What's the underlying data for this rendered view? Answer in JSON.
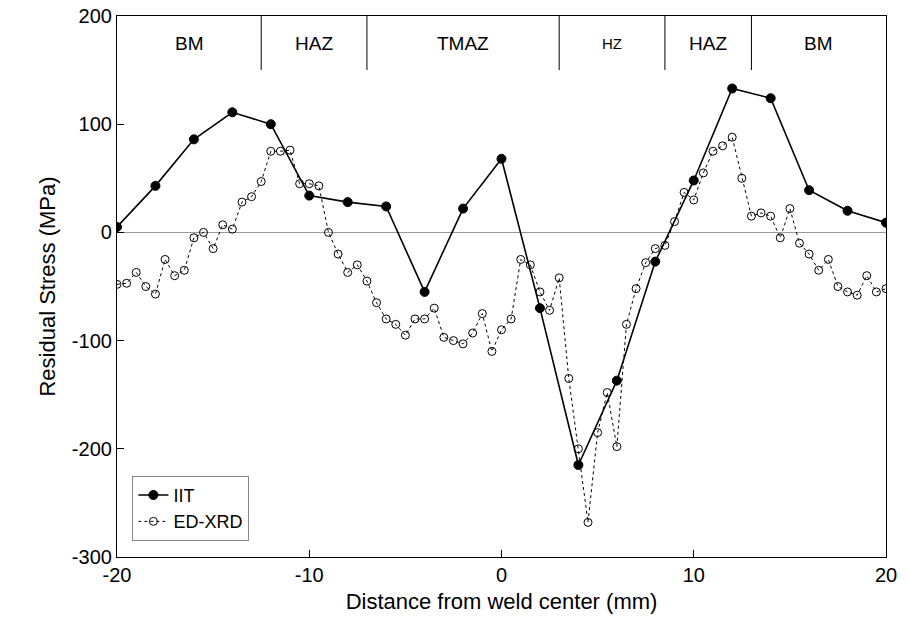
{
  "chart_data": {
    "type": "line",
    "x_label": "Distance from weld center (mm)",
    "y_label": "Residual Stress (MPa)",
    "xlim": [
      -20,
      20
    ],
    "xticks": [
      -20,
      -10,
      0,
      10,
      20
    ],
    "ylim": [
      -300,
      200
    ],
    "yticks": [
      -300,
      -200,
      -100,
      0,
      100,
      200
    ],
    "grid": false,
    "legend": "lower left",
    "zones": [
      {
        "label": "BM",
        "from": -20,
        "to": -12.5
      },
      {
        "label": "HAZ",
        "from": -12.5,
        "to": -7
      },
      {
        "label": "TMAZ",
        "from": -7,
        "to": 3
      },
      {
        "label": "HZ",
        "from": 3,
        "to": 8.5
      },
      {
        "label": "HAZ",
        "from": 8.5,
        "to": 13
      },
      {
        "label": "BM",
        "from": 13,
        "to": 20
      }
    ],
    "series": [
      {
        "name": "IIT",
        "color": "#000000",
        "marker": "circle",
        "line_style": "solid",
        "x": [
          -20,
          -18,
          -16,
          -14,
          -12,
          -10,
          -8,
          -6,
          -4,
          -2,
          0,
          2,
          4,
          6,
          8,
          10,
          12,
          14,
          16,
          18,
          20
        ],
        "values": [
          5,
          43,
          86,
          111,
          100,
          34,
          28,
          24,
          -55,
          22,
          68,
          -70,
          -215,
          -137,
          -27,
          48,
          133,
          124,
          39,
          20,
          9
        ]
      },
      {
        "name": "ED-XRD",
        "color": "#000000",
        "marker": "circle-open",
        "line_style": "dot",
        "x": [
          -20,
          -19.5,
          -19,
          -18.5,
          -18,
          -17.5,
          -17,
          -16.5,
          -16,
          -15.5,
          -15,
          -14.5,
          -14,
          -13.5,
          -13,
          -12.5,
          -12,
          -11.5,
          -11,
          -10.5,
          -10,
          -9.5,
          -9,
          -8.5,
          -8,
          -7.5,
          -7,
          -6.5,
          -6,
          -5.5,
          -5,
          -4.5,
          -4,
          -3.5,
          -3,
          -2.5,
          -2,
          -1.5,
          -1,
          -0.5,
          0,
          0.5,
          1,
          1.5,
          2,
          2.5,
          3,
          3.5,
          4,
          4.5,
          5,
          5.5,
          6,
          6.5,
          7,
          7.5,
          8,
          8.5,
          9,
          9.5,
          10,
          10.5,
          11,
          11.5,
          12,
          12.5,
          13,
          13.5,
          14,
          14.5,
          15,
          15.5,
          16,
          16.5,
          17,
          17.5,
          18,
          18.5,
          19,
          19.5,
          20
        ],
        "values": [
          -48,
          -47,
          -37,
          -50,
          -57,
          -25,
          -40,
          -35,
          -5,
          0,
          -15,
          7,
          3,
          28,
          33,
          47,
          75,
          75,
          76,
          45,
          45,
          43,
          0,
          -20,
          -37,
          -30,
          -45,
          -65,
          -80,
          -85,
          -95,
          -80,
          -80,
          -70,
          -97,
          -100,
          -103,
          -93,
          -75,
          -110,
          -90,
          -80,
          -25,
          -30,
          -55,
          -72,
          -42,
          -135,
          -200,
          -268,
          -185,
          -148,
          -198,
          -85,
          -52,
          -28,
          -15,
          -12,
          10,
          37,
          30,
          55,
          75,
          80,
          88,
          50,
          15,
          18,
          15,
          -5,
          22,
          -10,
          -20,
          -35,
          -25,
          -50,
          -55,
          -58,
          -40,
          -55,
          -52
        ]
      }
    ]
  }
}
